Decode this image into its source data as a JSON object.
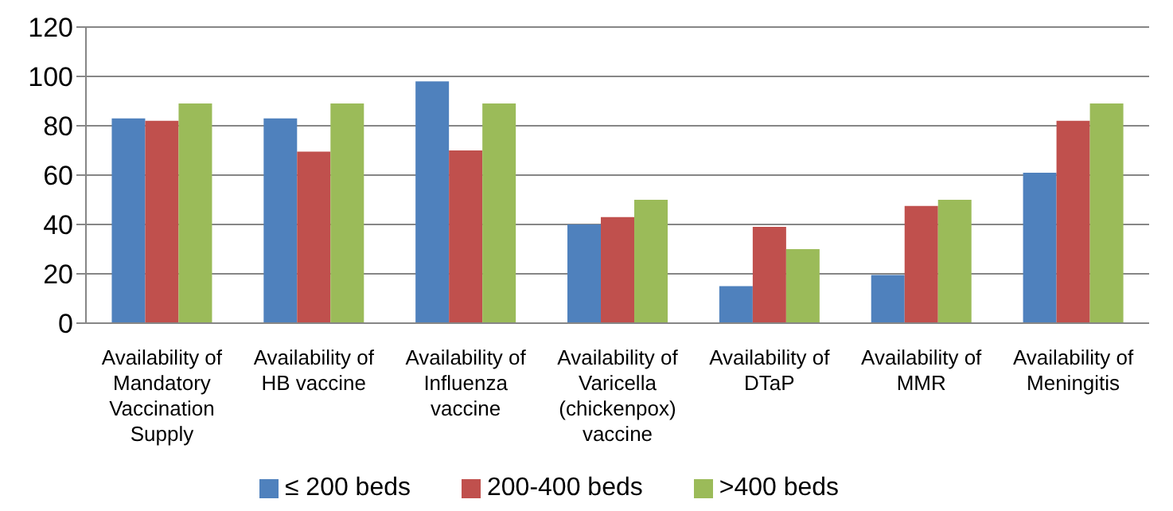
{
  "chart_data": {
    "type": "bar",
    "categories": [
      "Availability of Mandatory Vaccination Supply",
      "Availability of HB vaccine",
      "Availability of Influenza vaccine",
      "Availability of Varicella (chickenpox) vaccine",
      "Availability of DTaP",
      "Availability of MMR",
      "Availability of Meningitis"
    ],
    "series": [
      {
        "name": "≤ 200 beds",
        "color": "#4f81bd",
        "values": [
          83,
          83,
          98,
          40,
          15,
          19.5,
          61
        ]
      },
      {
        "name": "200-400 beds",
        "color": "#c0504d",
        "values": [
          82,
          69.5,
          70,
          43,
          39,
          47.5,
          82
        ]
      },
      {
        "name": ">400 beds",
        "color": "#9bbb59",
        "values": [
          89,
          89,
          89,
          50,
          30,
          50,
          89
        ]
      }
    ],
    "ylim": [
      0,
      120
    ],
    "yticks": [
      0,
      20,
      40,
      60,
      80,
      100,
      120
    ],
    "grid": "y",
    "legend": "bottom"
  }
}
